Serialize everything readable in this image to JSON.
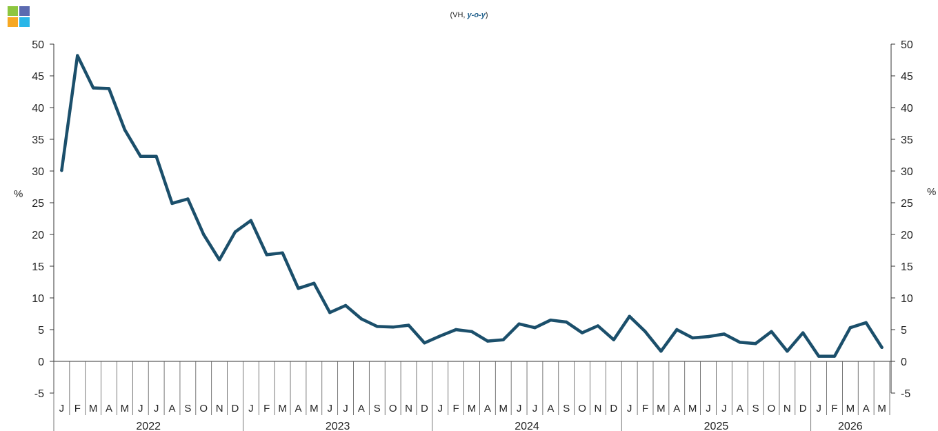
{
  "header": {
    "subtitle_pre": "(VH, ",
    "subtitle_em": "y-o-y",
    "subtitle_post": ")",
    "logo_colors": [
      "#8dc63f",
      "#5b6ab0",
      "#f7a823",
      "#29b6e8"
    ]
  },
  "chart_data": {
    "type": "line",
    "title": "",
    "subtitle": "(VH, y-o-y)",
    "ylabel_left": "%",
    "ylabel_right": "%",
    "ylim": [
      -5,
      50
    ],
    "yticks": [
      -5,
      0,
      5,
      10,
      15,
      20,
      25,
      30,
      35,
      40,
      45,
      50
    ],
    "grid": false,
    "line_color": "#1b4f6b",
    "month_labels": [
      "J",
      "F",
      "M",
      "A",
      "M",
      "J",
      "J",
      "A",
      "S",
      "O",
      "N",
      "D",
      "J",
      "F",
      "M",
      "A",
      "M",
      "J",
      "J",
      "A",
      "S",
      "O",
      "N",
      "D",
      "J",
      "F",
      "M",
      "A",
      "M",
      "J",
      "J",
      "A",
      "S",
      "O",
      "N",
      "D",
      "J",
      "F",
      "M",
      "A",
      "M",
      "J",
      "J",
      "A",
      "S",
      "O",
      "N",
      "D",
      "J",
      "F",
      "M",
      "A",
      "M"
    ],
    "years": [
      {
        "label": "2022",
        "months": 12
      },
      {
        "label": "2023",
        "months": 12
      },
      {
        "label": "2024",
        "months": 12
      },
      {
        "label": "2025",
        "months": 12
      },
      {
        "label": "2026",
        "months": 5
      }
    ],
    "series": [
      {
        "values": [
          30.1,
          48.2,
          43.1,
          43.0,
          36.5,
          32.3,
          32.3,
          24.9,
          25.6,
          20.0,
          16.0,
          20.4,
          22.2,
          16.8,
          17.1,
          11.5,
          12.3,
          7.7,
          8.8,
          6.7,
          5.5,
          5.4,
          5.7,
          2.9,
          4.0,
          5.0,
          4.7,
          3.2,
          3.4,
          5.9,
          5.3,
          6.5,
          6.2,
          4.5,
          5.6,
          3.4,
          7.1,
          4.7,
          1.6,
          5.0,
          3.7,
          3.9,
          4.3,
          3.0,
          2.8,
          4.7,
          1.6,
          4.5,
          0.8,
          0.8,
          5.3,
          6.1,
          2.2
        ]
      }
    ]
  }
}
